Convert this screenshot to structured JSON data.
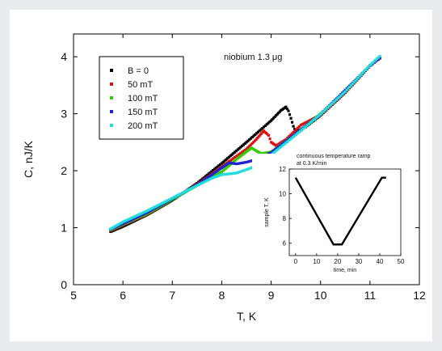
{
  "chart_data": [
    {
      "type": "scatter",
      "title": "niobium 1.3 μg",
      "xlabel": "T, K",
      "ylabel": "C, nJ/K",
      "xlim": [
        5,
        12
      ],
      "ylim": [
        0,
        4.4
      ],
      "xticks": [
        5,
        6,
        7,
        8,
        9,
        10,
        11,
        12
      ],
      "yticks": [
        0,
        1,
        2,
        3,
        4
      ],
      "legend_position": "top-left",
      "grid": false,
      "series": [
        {
          "name": "B = 0",
          "color": "#000000",
          "x": [
            5.75,
            6.0,
            6.5,
            7.0,
            7.5,
            8.0,
            8.5,
            9.0,
            9.1,
            9.2,
            9.3,
            9.35,
            9.4,
            9.45,
            9.5,
            9.7,
            10.0,
            10.5,
            11.0,
            11.2
          ],
          "y": [
            0.93,
            1.02,
            1.23,
            1.48,
            1.78,
            2.13,
            2.5,
            2.88,
            2.97,
            3.06,
            3.12,
            3.05,
            2.92,
            2.78,
            2.68,
            2.77,
            2.97,
            3.37,
            3.84,
            3.98
          ]
        },
        {
          "name": "50 mT",
          "color": "#dd1111",
          "x": [
            5.75,
            6.5,
            7.5,
            8.0,
            8.5,
            8.7,
            8.85,
            8.95,
            9.0,
            9.1,
            9.3,
            9.6,
            10.0,
            10.5,
            11.0,
            11.2
          ],
          "y": [
            0.95,
            1.24,
            1.76,
            2.07,
            2.38,
            2.55,
            2.7,
            2.62,
            2.5,
            2.44,
            2.55,
            2.8,
            2.98,
            3.38,
            3.85,
            3.97
          ]
        },
        {
          "name": "100 mT",
          "color": "#33cc00",
          "x": [
            5.75,
            6.5,
            7.5,
            8.0,
            8.3,
            8.45,
            8.6,
            8.7,
            8.8,
            9.0,
            9.5,
            10.0,
            10.5,
            11.0,
            11.2
          ],
          "y": [
            0.96,
            1.25,
            1.74,
            1.98,
            2.2,
            2.3,
            2.4,
            2.35,
            2.3,
            2.33,
            2.65,
            3.0,
            3.4,
            3.85,
            3.99
          ]
        },
        {
          "name": "150 mT",
          "color": "#2222cc",
          "x": [
            5.75,
            6.5,
            7.5,
            7.8,
            8.0,
            8.15,
            8.3,
            8.5,
            8.8,
            9.0,
            9.5,
            10.0,
            11.0,
            11.2
          ],
          "y": [
            0.97,
            1.27,
            1.75,
            1.93,
            2.05,
            2.14,
            2.12,
            2.15,
            2.22,
            2.32,
            2.65,
            2.99,
            3.84,
            3.98
          ]
        },
        {
          "name": "200 mT",
          "color": "#22dddd",
          "x": [
            5.75,
            6.0,
            6.5,
            7.0,
            7.5,
            7.8,
            8.0,
            8.3,
            8.6,
            9.0,
            9.5,
            10.0,
            10.5,
            11.0,
            11.2
          ],
          "y": [
            0.98,
            1.1,
            1.3,
            1.52,
            1.74,
            1.87,
            1.93,
            1.96,
            2.05,
            2.28,
            2.63,
            2.99,
            3.39,
            3.85,
            4.01
          ]
        }
      ]
    },
    {
      "type": "line",
      "title": "continuous temperature ramp at 0.3 K/min",
      "xlabel": "time, min",
      "ylabel": "sample T, K",
      "xlim": [
        -3,
        50
      ],
      "ylim": [
        5,
        12
      ],
      "xticks": [
        0,
        10,
        20,
        30,
        40,
        50
      ],
      "yticks": [
        6,
        8,
        10,
        12
      ],
      "series": [
        {
          "color": "#000000",
          "x": [
            0,
            18,
            22,
            41,
            43
          ],
          "y": [
            11.3,
            5.9,
            5.9,
            11.3,
            11.3
          ]
        }
      ]
    }
  ]
}
